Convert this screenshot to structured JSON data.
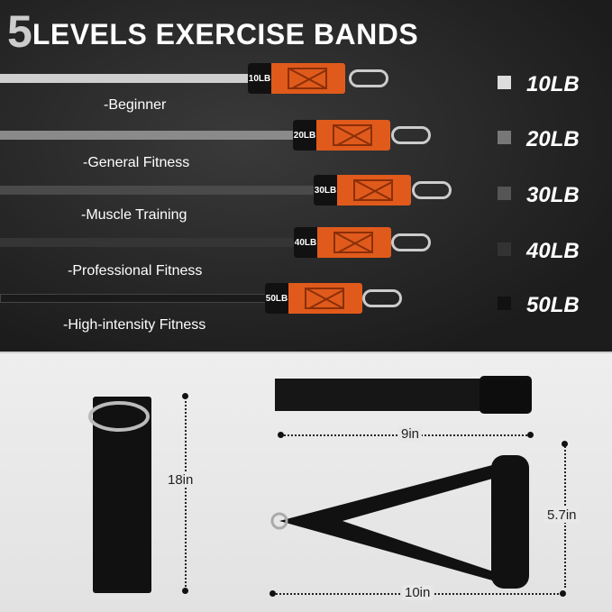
{
  "title": {
    "number": "5",
    "text": "LEVELS EXERCISE BANDS"
  },
  "bands": [
    {
      "tag": "10LB",
      "level": "-Beginner",
      "color": "#cfcfcf"
    },
    {
      "tag": "20LB",
      "level": "-General Fitness",
      "color": "#8a8a8a"
    },
    {
      "tag": "30LB",
      "level": "-Muscle Training",
      "color": "#4a4a4a"
    },
    {
      "tag": "40LB",
      "level": "-Professional  Fitness",
      "color": "#353535"
    },
    {
      "tag": "50LB",
      "level": "-High-intensity Fitness",
      "color": "#1a1a1a"
    }
  ],
  "legend": [
    {
      "label": "10LB",
      "color": "#dddddd"
    },
    {
      "label": "20LB",
      "color": "#777777"
    },
    {
      "label": "30LB",
      "color": "#555555"
    },
    {
      "label": "40LB",
      "color": "#333333"
    },
    {
      "label": "50LB",
      "color": "#111111"
    }
  ],
  "accessories": {
    "door_anchor": "18in",
    "ankle_strap": "9in",
    "handle_width": "10in",
    "handle_height": "5.7in"
  },
  "accent": "#e05a1c"
}
